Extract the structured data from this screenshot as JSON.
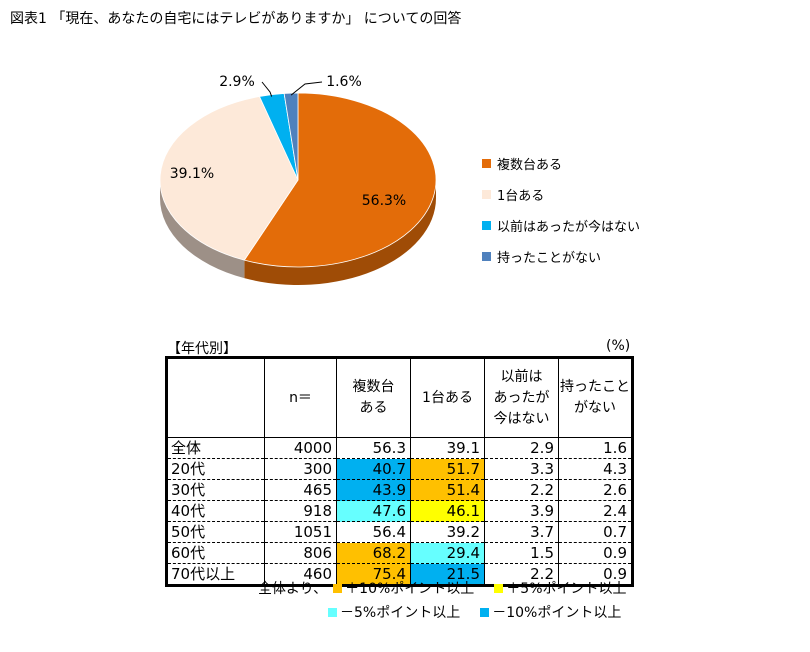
{
  "title": "図表1 「現在、あなたの自宅にはテレビがありますか」 についての回答",
  "colors": {
    "plus10": "#ffc000",
    "plus5": "#ffff00",
    "minus5": "#66ffff",
    "minus10": "#00b0f0"
  },
  "chart_data": {
    "type": "pie",
    "slices": [
      {
        "label": "複数台ある",
        "value": 56.3,
        "value_label": "56.3%",
        "color": "#e36c09"
      },
      {
        "label": "1台ある",
        "value": 39.1,
        "value_label": "39.1%",
        "color": "#fde9d9"
      },
      {
        "label": "以前はあったが今はない",
        "value": 2.9,
        "value_label": "2.9%",
        "color": "#00b0f0"
      },
      {
        "label": "持ったことがない",
        "value": 1.6,
        "value_label": "1.6%",
        "color": "#4f81bd"
      }
    ],
    "legend_position": "right"
  },
  "table": {
    "section_label": "【年代別】",
    "unit_label": "(%)",
    "headers": [
      "",
      "n＝",
      "複数台\nある",
      "1台ある",
      "以前は\nあったが\n今はない",
      "持ったこと\nがない"
    ],
    "rows": [
      {
        "label": "全体",
        "cells": [
          "4000",
          "56.3",
          "39.1",
          "2.9",
          "1.6"
        ],
        "hl": [
          null,
          null,
          null,
          null,
          null
        ]
      },
      {
        "label": "20代",
        "cells": [
          "300",
          "40.7",
          "51.7",
          "3.3",
          "4.3"
        ],
        "hl": [
          null,
          "minus10",
          "plus10",
          null,
          null
        ]
      },
      {
        "label": "30代",
        "cells": [
          "465",
          "43.9",
          "51.4",
          "2.2",
          "2.6"
        ],
        "hl": [
          null,
          "minus10",
          "plus10",
          null,
          null
        ]
      },
      {
        "label": "40代",
        "cells": [
          "918",
          "47.6",
          "46.1",
          "3.9",
          "2.4"
        ],
        "hl": [
          null,
          "minus5",
          "plus5",
          null,
          null
        ]
      },
      {
        "label": "50代",
        "cells": [
          "1051",
          "56.4",
          "39.2",
          "3.7",
          "0.7"
        ],
        "hl": [
          null,
          null,
          null,
          null,
          null
        ]
      },
      {
        "label": "60代",
        "cells": [
          "806",
          "68.2",
          "29.4",
          "1.5",
          "0.9"
        ],
        "hl": [
          null,
          "plus10",
          "minus5",
          null,
          null
        ]
      },
      {
        "label": "70代以上",
        "cells": [
          "460",
          "75.4",
          "21.5",
          "2.2",
          "0.9"
        ],
        "hl": [
          null,
          "plus10",
          "minus10",
          null,
          null
        ]
      }
    ]
  },
  "footnote": {
    "prefix": "全体より、",
    "plus10": "＋10%ポイント以上",
    "plus5": "＋5%ポイント以上",
    "minus5": "－5%ポイント以上",
    "minus10": "－10%ポイント以上"
  }
}
